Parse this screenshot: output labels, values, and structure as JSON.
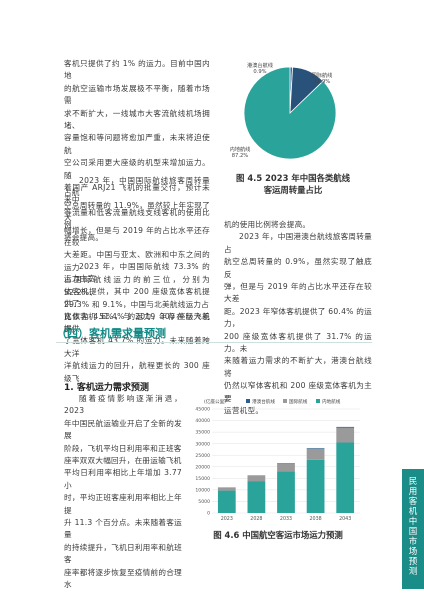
{
  "left_top_paragraph": [
    "客机只提供了约 1% 的运力。目前中国内地",
    "的航空运输市场发展极不平衡，随着市场需",
    "求不断扩大，一线城市大客流航线机场拥堵、",
    "容量饱和等问题将愈加严重，未来将迫使航",
    "空公司采用更大座级的机型来增加运力。随",
    "着国产 ARJ21 飞机的批量交付，预计未来中",
    "等流量和低客流量航线支线客机的使用比例",
    "将会提高。"
  ],
  "left_mid_paragraph_1": [
    "2023 年，中国国际航线旅客周转量占航",
    "空总周转量的 11.9%，虽然较上年实现了大",
    "幅增长，但是与 2019 年的占比水平还存在较",
    "大差距。中国与亚太、欧洲和中东之间的运力",
    "占国际航线运力的前三位，分别为 52.2%、",
    "29.3% 和 9.1%，中国与北美航线运力占",
    "比仅为 4.6%，与 2019 年存在巨大差距。"
  ],
  "left_mid_paragraph_2": [
    "2023 年，中国国际航线 73.3% 的运力由宽",
    "体客机提供，其中 200 座级宽体客机提供了",
    "宽体客机 51.4% 的运力，300 座级飞机提供",
    "了宽体客机 43.7% 的运力。未来随着跨大洋",
    "洋航线运力的回升，航程更长的 300 座级飞"
  ],
  "right_paragraph": [
    "机的使用比例将会提高。",
    "2023 年，中国港澳台航线旅客周转量占",
    "航空总周转量的 0.9%，虽然实现了触底反",
    "弹，但是与 2019 年的占比水平还存在较大差",
    "距。2023 年窄体客机提供了 60.4% 的运力，",
    "200 座级宽体客机提供了 31.7% 的运力。未",
    "来随着运力需求的不断扩大，港澳台航线将",
    "仍然以窄体客机和 200 座级宽体客机为主要",
    "运营机型。"
  ],
  "pie_chart": {
    "caption_line1": "图 4.5  2023 年中国各类航线",
    "caption_line2": "客运周转量占比",
    "slices": [
      {
        "name": "港澳台航线",
        "pct": "0.9%",
        "value": 0.9,
        "color": "#2f6d9e"
      },
      {
        "name": "国际航线",
        "pct": "11.9%",
        "value": 11.9,
        "color": "#28527a"
      },
      {
        "name": "内地航线",
        "pct": "87.2%",
        "value": 87.2,
        "color": "#2aa39b"
      }
    ]
  },
  "section": {
    "title": "（四）客机需求量预测",
    "subtitle": "1.  客机运力需求预测"
  },
  "bottom_paragraph": [
    "随着疫情影响逐渐消退，2023",
    "年中国民航运输业开启了全新的发展",
    "阶段，飞机平均日利用率和正班客",
    "座率双双大幅回升，在册运输飞机",
    "平均日利用率相比上年增加 3.77 小",
    "时，平均正班客座利用率相比上年提",
    "升 11.3 个百分点。未来随着客运量",
    "的持续提升，飞机日利用率和航班客",
    "座率都将逐步恢复至疫情前的合理水"
  ],
  "chart_data": {
    "type": "bar",
    "stacked": true,
    "title": "",
    "caption": "图 4.6 中国航空客运市场运力预测",
    "ylabel": "(亿座公里)",
    "ylim": [
      0,
      45000
    ],
    "yticks": [
      "45000",
      "40000",
      "35000",
      "30000",
      "25000",
      "20000",
      "15000",
      "10000",
      "5000",
      "0"
    ],
    "categories": [
      "2023",
      "2028",
      "2033",
      "2038",
      "2043"
    ],
    "legend_position": "top",
    "grid": true,
    "series": [
      {
        "name": "港澳台航线",
        "values": [
          150,
          200,
          250,
          300,
          350
        ],
        "color": "#2b5f8e"
      },
      {
        "name": "国际航线",
        "values": [
          1200,
          2200,
          3300,
          4700,
          6400
        ],
        "color": "#9a9a9a"
      },
      {
        "name": "内地航线",
        "values": [
          9700,
          13800,
          18000,
          23000,
          30500
        ],
        "color": "#2aa39b"
      }
    ]
  },
  "side_tab": [
    "民",
    "用",
    "客",
    "机",
    "中",
    "国",
    "市",
    "场",
    "预",
    "测"
  ],
  "page_number": "13"
}
